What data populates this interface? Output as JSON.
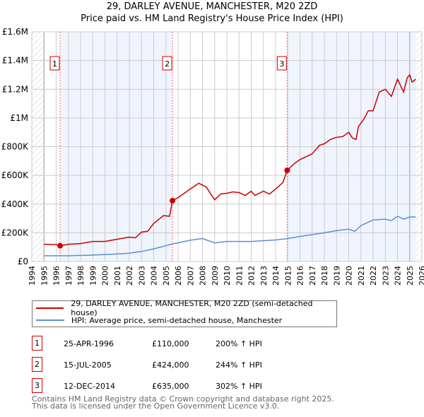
{
  "chart_data": {
    "type": "line",
    "title": "29, DARLEY AVENUE, MANCHESTER, M20 2ZD",
    "subtitle": "Price paid vs. HM Land Registry's House Price Index (HPI)",
    "xlim": [
      1994,
      2026
    ],
    "ylim": [
      0,
      1600000
    ],
    "x_ticks": [
      "1994",
      "1995",
      "1996",
      "1997",
      "1998",
      "1999",
      "2000",
      "2001",
      "2002",
      "2003",
      "2004",
      "2005",
      "2006",
      "2007",
      "2008",
      "2009",
      "2010",
      "2011",
      "2012",
      "2013",
      "2014",
      "2015",
      "2016",
      "2017",
      "2018",
      "2019",
      "2020",
      "2021",
      "2022",
      "2023",
      "2024",
      "2025",
      "2026"
    ],
    "y_ticks": [
      {
        "v": 0,
        "label": "£0"
      },
      {
        "v": 200000,
        "label": "£200K"
      },
      {
        "v": 400000,
        "label": "£400K"
      },
      {
        "v": 600000,
        "label": "£600K"
      },
      {
        "v": 800000,
        "label": "£800K"
      },
      {
        "v": 1000000,
        "label": "£1M"
      },
      {
        "v": 1200000,
        "label": "£1.2M"
      },
      {
        "v": 1400000,
        "label": "£1.4M"
      },
      {
        "v": 1600000,
        "label": "£1.6M"
      }
    ],
    "grid": true,
    "series": [
      {
        "name": "29, DARLEY AVENUE, MANCHESTER, M20 2ZD (semi-detached house)",
        "color": "#cc0000",
        "x": [
          1995,
          1996,
          1996.32,
          1997,
          1998,
          1999,
          2000,
          2001,
          2002,
          2002.5,
          2003,
          2003.5,
          2004,
          2004.8,
          2005.3,
          2005.54,
          2006,
          2007,
          2007.7,
          2008.3,
          2009,
          2009.5,
          2010,
          2010.5,
          2011,
          2011.5,
          2012,
          2012.3,
          2013,
          2013.5,
          2014,
          2014.6,
          2014.95,
          2015.5,
          2016,
          2017,
          2017.6,
          2018,
          2018.5,
          2019,
          2019.5,
          2020,
          2020.3,
          2020.6,
          2020.8,
          2021.3,
          2021.6,
          2022,
          2022.5,
          2023,
          2023.5,
          2024,
          2024.5,
          2024.8,
          2025,
          2025.2,
          2025.5
        ],
        "y": [
          120000,
          118000,
          110000,
          120000,
          125000,
          140000,
          140000,
          155000,
          170000,
          165000,
          205000,
          210000,
          265000,
          320000,
          315000,
          424000,
          445000,
          505000,
          545000,
          520000,
          430000,
          470000,
          475000,
          485000,
          480000,
          460000,
          490000,
          460000,
          490000,
          470000,
          505000,
          550000,
          635000,
          680000,
          710000,
          750000,
          810000,
          820000,
          850000,
          865000,
          870000,
          900000,
          860000,
          850000,
          940000,
          1000000,
          1050000,
          1050000,
          1180000,
          1200000,
          1150000,
          1270000,
          1180000,
          1280000,
          1300000,
          1250000,
          1270000
        ]
      },
      {
        "name": "HPI: Average price, semi-detached house, Manchester",
        "color": "#5b8fd6",
        "x": [
          1995,
          1997,
          1999,
          2001,
          2002,
          2003,
          2004,
          2005,
          2005.54,
          2006,
          2007,
          2008,
          2009,
          2010,
          2012,
          2014,
          2015,
          2016,
          2018,
          2019,
          2020,
          2020.5,
          2021,
          2022,
          2023,
          2023.5,
          2024,
          2024.5,
          2025,
          2025.5
        ],
        "y": [
          40000,
          40000,
          45000,
          52000,
          58000,
          70000,
          88000,
          110000,
          123000,
          130000,
          148000,
          160000,
          130000,
          140000,
          140000,
          150000,
          160000,
          175000,
          200000,
          215000,
          225000,
          210000,
          250000,
          290000,
          295000,
          285000,
          315000,
          295000,
          310000,
          310000
        ]
      }
    ],
    "sales": [
      {
        "n": "1",
        "x": 1996.32,
        "y": 110000
      },
      {
        "n": "2",
        "x": 2005.54,
        "y": 424000
      },
      {
        "n": "3",
        "x": 2014.95,
        "y": 635000
      }
    ],
    "data_end": 2025.5
  },
  "legend": {
    "red": "29, DARLEY AVENUE, MANCHESTER, M20 2ZD (semi-detached house)",
    "blue": "HPI: Average price, semi-detached house, Manchester"
  },
  "sales_table": [
    {
      "n": "1",
      "date": "25-APR-1996",
      "price": "£110,000",
      "hpi": "200% ↑ HPI"
    },
    {
      "n": "2",
      "date": "15-JUL-2005",
      "price": "£424,000",
      "hpi": "244% ↑ HPI"
    },
    {
      "n": "3",
      "date": "12-DEC-2014",
      "price": "£635,000",
      "hpi": "302% ↑ HPI"
    }
  ],
  "footer": {
    "line1": "Contains HM Land Registry data © Crown copyright and database right 2025.",
    "line2": "This data is licensed under the Open Government Licence v3.0."
  }
}
